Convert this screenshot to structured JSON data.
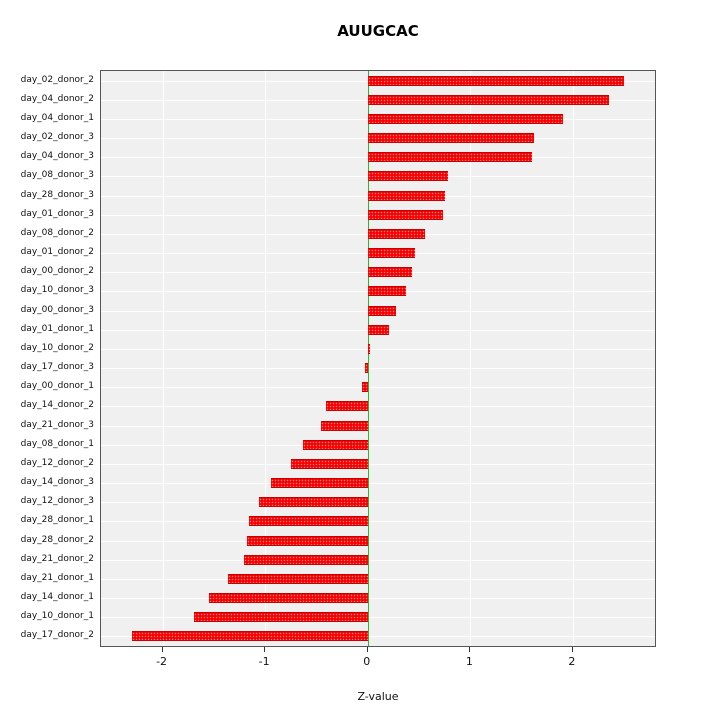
{
  "chart_data": {
    "type": "bar",
    "orientation": "horizontal",
    "title": "AUUGCAC",
    "xlabel": "Z-value",
    "ylabel": "",
    "xlim": [
      -2.6,
      2.8
    ],
    "xticks": [
      -2,
      -1,
      0,
      1,
      2
    ],
    "grid": true,
    "legend": "none",
    "bar_color": "#ff0000",
    "zero_line_color": "#2fb62f",
    "plot_background": "#f0f0f0",
    "categories": [
      "day_02_donor_2",
      "day_04_donor_2",
      "day_04_donor_1",
      "day_02_donor_3",
      "day_04_donor_3",
      "day_08_donor_3",
      "day_28_donor_3",
      "day_01_donor_3",
      "day_08_donor_2",
      "day_01_donor_2",
      "day_00_donor_2",
      "day_10_donor_3",
      "day_00_donor_3",
      "day_01_donor_1",
      "day_10_donor_2",
      "day_17_donor_3",
      "day_00_donor_1",
      "day_14_donor_2",
      "day_21_donor_3",
      "day_08_donor_1",
      "day_12_donor_2",
      "day_14_donor_3",
      "day_12_donor_3",
      "day_28_donor_1",
      "day_28_donor_2",
      "day_21_donor_2",
      "day_21_donor_1",
      "day_14_donor_1",
      "day_10_donor_1",
      "day_17_donor_2"
    ],
    "values": [
      2.5,
      2.35,
      1.9,
      1.62,
      1.6,
      0.78,
      0.75,
      0.73,
      0.56,
      0.46,
      0.43,
      0.37,
      0.28,
      0.21,
      0.02,
      -0.03,
      -0.06,
      -0.41,
      -0.46,
      -0.63,
      -0.75,
      -0.94,
      -1.06,
      -1.16,
      -1.18,
      -1.21,
      -1.36,
      -1.55,
      -1.69,
      -2.3
    ]
  }
}
